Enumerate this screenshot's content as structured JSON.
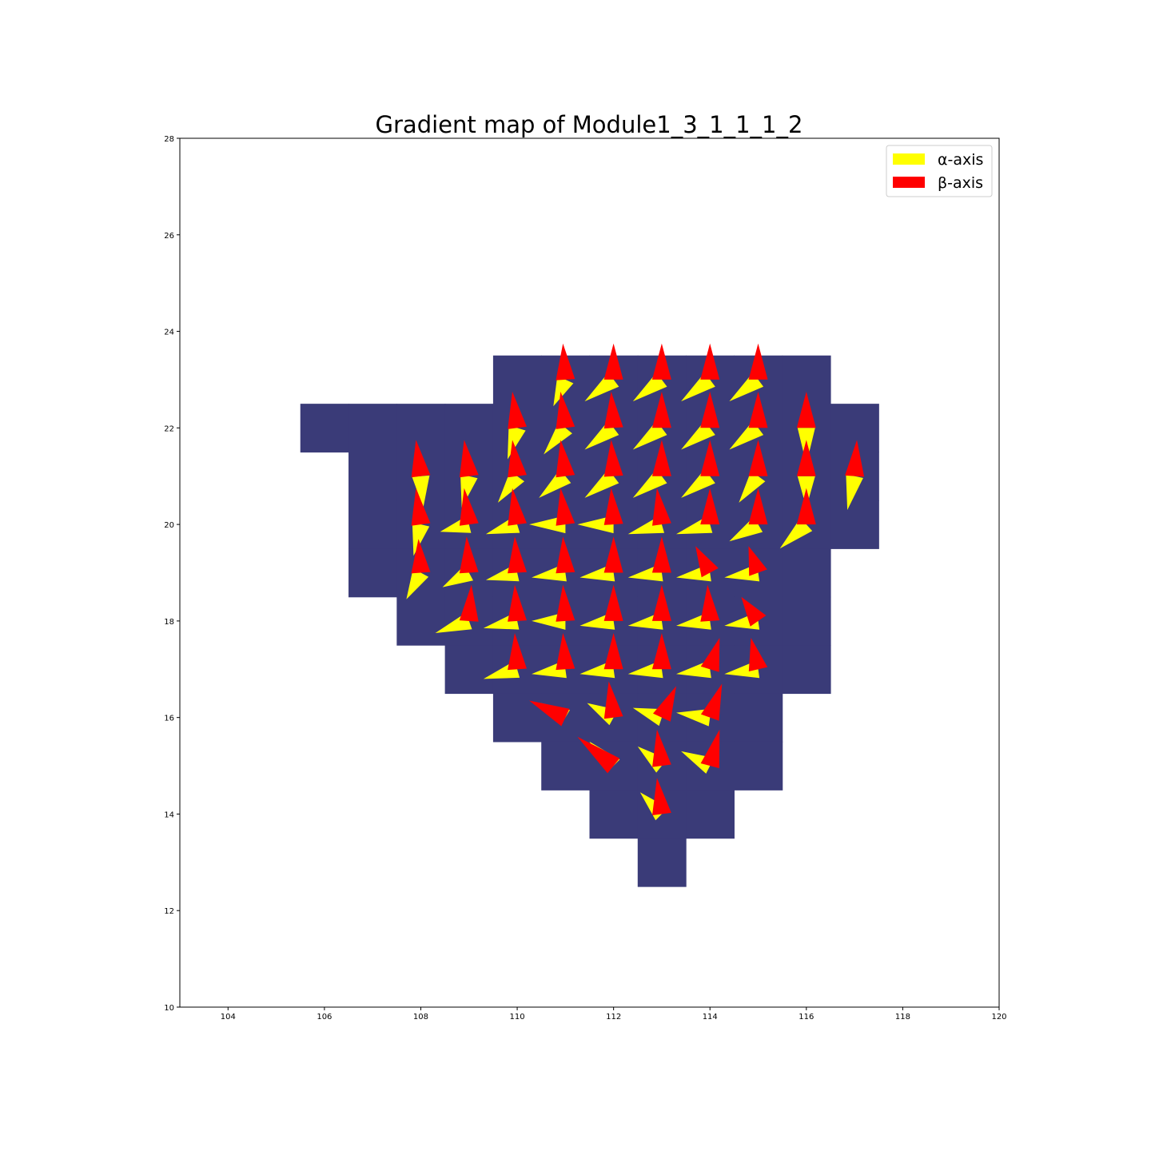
{
  "chart_data": {
    "type": "quiver",
    "title": "Gradient map of Module1_3_1_1_1_2",
    "xlabel": "",
    "ylabel": "",
    "xlim": [
      103,
      120
    ],
    "ylim": [
      10,
      28
    ],
    "x_ticks": [
      104,
      106,
      108,
      110,
      112,
      114,
      116,
      118,
      120
    ],
    "y_ticks": [
      10,
      12,
      14,
      16,
      18,
      20,
      22,
      24,
      26,
      28
    ],
    "grid": false,
    "legend": {
      "placement": "top-right",
      "entries": [
        {
          "label": "α-axis",
          "color": "#ffff00"
        },
        {
          "label": "β-axis",
          "color": "#ff0000"
        }
      ]
    },
    "mask_color": "#3a3b78",
    "mask_cells": [
      [
        110,
        23
      ],
      [
        111,
        23
      ],
      [
        112,
        23
      ],
      [
        113,
        23
      ],
      [
        114,
        23
      ],
      [
        115,
        23
      ],
      [
        116,
        23
      ],
      [
        106,
        22
      ],
      [
        107,
        22
      ],
      [
        108,
        22
      ],
      [
        109,
        22
      ],
      [
        110,
        22
      ],
      [
        111,
        22
      ],
      [
        112,
        22
      ],
      [
        113,
        22
      ],
      [
        114,
        22
      ],
      [
        115,
        22
      ],
      [
        116,
        22
      ],
      [
        117,
        22
      ],
      [
        107,
        21
      ],
      [
        108,
        21
      ],
      [
        109,
        21
      ],
      [
        110,
        21
      ],
      [
        111,
        21
      ],
      [
        112,
        21
      ],
      [
        113,
        21
      ],
      [
        114,
        21
      ],
      [
        115,
        21
      ],
      [
        116,
        21
      ],
      [
        117,
        21
      ],
      [
        107,
        20
      ],
      [
        108,
        20
      ],
      [
        109,
        20
      ],
      [
        110,
        20
      ],
      [
        111,
        20
      ],
      [
        112,
        20
      ],
      [
        113,
        20
      ],
      [
        114,
        20
      ],
      [
        115,
        20
      ],
      [
        116,
        20
      ],
      [
        117,
        20
      ],
      [
        107,
        19
      ],
      [
        108,
        19
      ],
      [
        109,
        19
      ],
      [
        110,
        19
      ],
      [
        111,
        19
      ],
      [
        112,
        19
      ],
      [
        113,
        19
      ],
      [
        114,
        19
      ],
      [
        115,
        19
      ],
      [
        116,
        19
      ],
      [
        108,
        18
      ],
      [
        109,
        18
      ],
      [
        110,
        18
      ],
      [
        111,
        18
      ],
      [
        112,
        18
      ],
      [
        113,
        18
      ],
      [
        114,
        18
      ],
      [
        115,
        18
      ],
      [
        116,
        18
      ],
      [
        109,
        17
      ],
      [
        110,
        17
      ],
      [
        111,
        17
      ],
      [
        112,
        17
      ],
      [
        113,
        17
      ],
      [
        114,
        17
      ],
      [
        115,
        17
      ],
      [
        116,
        17
      ],
      [
        110,
        16
      ],
      [
        111,
        16
      ],
      [
        112,
        16
      ],
      [
        113,
        16
      ],
      [
        114,
        16
      ],
      [
        115,
        16
      ],
      [
        111,
        15
      ],
      [
        112,
        15
      ],
      [
        113,
        15
      ],
      [
        114,
        15
      ],
      [
        115,
        15
      ],
      [
        112,
        14
      ],
      [
        113,
        14
      ],
      [
        114,
        14
      ],
      [
        113,
        13
      ]
    ],
    "beta_color": "#ff0000",
    "alpha_color": "#ffff00",
    "arrows": [
      {
        "x": 111,
        "y": 23,
        "a": [
          -0.25,
          -0.55
        ],
        "b": [
          -0.05,
          0.75
        ]
      },
      {
        "x": 112,
        "y": 23,
        "a": [
          -0.6,
          -0.45
        ],
        "b": [
          0,
          0.75
        ]
      },
      {
        "x": 113,
        "y": 23,
        "a": [
          -0.6,
          -0.45
        ],
        "b": [
          0,
          0.75
        ]
      },
      {
        "x": 114,
        "y": 23,
        "a": [
          -0.6,
          -0.45
        ],
        "b": [
          0,
          0.75
        ]
      },
      {
        "x": 115,
        "y": 23,
        "a": [
          -0.6,
          -0.45
        ],
        "b": [
          0,
          0.75
        ]
      },
      {
        "x": 110,
        "y": 22,
        "a": [
          -0.2,
          -0.65
        ],
        "b": [
          -0.1,
          0.75
        ]
      },
      {
        "x": 111,
        "y": 22,
        "a": [
          -0.45,
          -0.55
        ],
        "b": [
          -0.1,
          0.75
        ]
      },
      {
        "x": 112,
        "y": 22,
        "a": [
          -0.6,
          -0.45
        ],
        "b": [
          -0.05,
          0.75
        ]
      },
      {
        "x": 113,
        "y": 22,
        "a": [
          -0.6,
          -0.45
        ],
        "b": [
          0,
          0.75
        ]
      },
      {
        "x": 114,
        "y": 22,
        "a": [
          -0.6,
          -0.45
        ],
        "b": [
          0,
          0.75
        ]
      },
      {
        "x": 115,
        "y": 22,
        "a": [
          -0.6,
          -0.45
        ],
        "b": [
          0,
          0.75
        ]
      },
      {
        "x": 116,
        "y": 22,
        "a": [
          0,
          -0.75
        ],
        "b": [
          0,
          0.75
        ]
      },
      {
        "x": 108,
        "y": 21,
        "a": [
          0.05,
          -0.65
        ],
        "b": [
          -0.1,
          0.75
        ]
      },
      {
        "x": 109,
        "y": 21,
        "a": [
          -0.15,
          -0.65
        ],
        "b": [
          -0.1,
          0.75
        ]
      },
      {
        "x": 110,
        "y": 21,
        "a": [
          -0.4,
          -0.55
        ],
        "b": [
          -0.1,
          0.75
        ]
      },
      {
        "x": 111,
        "y": 21,
        "a": [
          -0.55,
          -0.45
        ],
        "b": [
          -0.1,
          0.75
        ]
      },
      {
        "x": 112,
        "y": 21,
        "a": [
          -0.6,
          -0.45
        ],
        "b": [
          -0.05,
          0.75
        ]
      },
      {
        "x": 113,
        "y": 21,
        "a": [
          -0.6,
          -0.45
        ],
        "b": [
          0,
          0.75
        ]
      },
      {
        "x": 114,
        "y": 21,
        "a": [
          -0.6,
          -0.45
        ],
        "b": [
          0,
          0.75
        ]
      },
      {
        "x": 115,
        "y": 21,
        "a": [
          -0.4,
          -0.55
        ],
        "b": [
          0,
          0.75
        ]
      },
      {
        "x": 116,
        "y": 21,
        "a": [
          0,
          -0.65
        ],
        "b": [
          0,
          0.75
        ]
      },
      {
        "x": 117,
        "y": 21,
        "a": [
          -0.15,
          -0.7
        ],
        "b": [
          0.05,
          0.75
        ]
      },
      {
        "x": 108,
        "y": 20,
        "a": [
          -0.15,
          -0.65
        ],
        "b": [
          -0.1,
          0.75
        ]
      },
      {
        "x": 109,
        "y": 20,
        "a": [
          -0.6,
          -0.15
        ],
        "b": [
          -0.1,
          0.75
        ]
      },
      {
        "x": 110,
        "y": 20,
        "a": [
          -0.65,
          -0.2
        ],
        "b": [
          -0.1,
          0.75
        ]
      },
      {
        "x": 111,
        "y": 20,
        "a": [
          -0.75,
          0
        ],
        "b": [
          -0.1,
          0.75
        ]
      },
      {
        "x": 112,
        "y": 20,
        "a": [
          -0.75,
          0
        ],
        "b": [
          -0.05,
          0.75
        ]
      },
      {
        "x": 113,
        "y": 20,
        "a": [
          -0.7,
          -0.2
        ],
        "b": [
          -0.1,
          0.75
        ]
      },
      {
        "x": 114,
        "y": 20,
        "a": [
          -0.7,
          -0.2
        ],
        "b": [
          0,
          0.75
        ]
      },
      {
        "x": 115,
        "y": 20,
        "a": [
          -0.6,
          -0.35
        ],
        "b": [
          0,
          0.75
        ]
      },
      {
        "x": 116,
        "y": 20,
        "a": [
          -0.55,
          -0.5
        ],
        "b": [
          0,
          0.75
        ]
      },
      {
        "x": 108,
        "y": 19,
        "a": [
          -0.3,
          -0.55
        ],
        "b": [
          -0.05,
          0.7
        ]
      },
      {
        "x": 109,
        "y": 19,
        "a": [
          -0.55,
          -0.3
        ],
        "b": [
          -0.05,
          0.75
        ]
      },
      {
        "x": 110,
        "y": 19,
        "a": [
          -0.65,
          -0.15
        ],
        "b": [
          -0.05,
          0.75
        ]
      },
      {
        "x": 111,
        "y": 19,
        "a": [
          -0.7,
          -0.1
        ],
        "b": [
          -0.05,
          0.75
        ]
      },
      {
        "x": 112,
        "y": 19,
        "a": [
          -0.7,
          -0.1
        ],
        "b": [
          0,
          0.75
        ]
      },
      {
        "x": 113,
        "y": 19,
        "a": [
          -0.7,
          -0.1
        ],
        "b": [
          0,
          0.75
        ]
      },
      {
        "x": 114,
        "y": 19,
        "a": [
          -0.7,
          -0.1
        ],
        "b": [
          -0.3,
          0.55
        ]
      },
      {
        "x": 115,
        "y": 19,
        "a": [
          -0.7,
          -0.1
        ],
        "b": [
          -0.2,
          0.55
        ]
      },
      {
        "x": 109,
        "y": 18,
        "a": [
          -0.7,
          -0.25
        ],
        "b": [
          0.05,
          0.75
        ]
      },
      {
        "x": 110,
        "y": 18,
        "a": [
          -0.7,
          -0.15
        ],
        "b": [
          -0.05,
          0.75
        ]
      },
      {
        "x": 111,
        "y": 18,
        "a": [
          -0.7,
          0
        ],
        "b": [
          -0.05,
          0.75
        ]
      },
      {
        "x": 112,
        "y": 18,
        "a": [
          -0.7,
          -0.1
        ],
        "b": [
          0,
          0.75
        ]
      },
      {
        "x": 113,
        "y": 18,
        "a": [
          -0.7,
          -0.1
        ],
        "b": [
          0,
          0.75
        ]
      },
      {
        "x": 114,
        "y": 18,
        "a": [
          -0.7,
          -0.1
        ],
        "b": [
          -0.05,
          0.75
        ]
      },
      {
        "x": 115,
        "y": 18,
        "a": [
          -0.7,
          -0.1
        ],
        "b": [
          -0.35,
          0.5
        ]
      },
      {
        "x": 110,
        "y": 17,
        "a": [
          -0.7,
          -0.2
        ],
        "b": [
          -0.05,
          0.75
        ]
      },
      {
        "x": 111,
        "y": 17,
        "a": [
          -0.7,
          -0.1
        ],
        "b": [
          -0.05,
          0.75
        ]
      },
      {
        "x": 112,
        "y": 17,
        "a": [
          -0.7,
          -0.1
        ],
        "b": [
          0,
          0.75
        ]
      },
      {
        "x": 113,
        "y": 17,
        "a": [
          -0.7,
          -0.1
        ],
        "b": [
          0,
          0.75
        ]
      },
      {
        "x": 114,
        "y": 17,
        "a": [
          -0.7,
          -0.1
        ],
        "b": [
          0.2,
          0.65
        ]
      },
      {
        "x": 115,
        "y": 17,
        "a": [
          -0.7,
          -0.1
        ],
        "b": [
          -0.15,
          0.65
        ]
      },
      {
        "x": 111,
        "y": 16,
        "a": [
          -0.5,
          0.3
        ],
        "b": [
          -0.75,
          0.35
        ]
      },
      {
        "x": 112,
        "y": 16,
        "a": [
          -0.55,
          0.3
        ],
        "b": [
          -0.1,
          0.75
        ]
      },
      {
        "x": 113,
        "y": 16,
        "a": [
          -0.6,
          0.2
        ],
        "b": [
          0.3,
          0.65
        ]
      },
      {
        "x": 114,
        "y": 16,
        "a": [
          -0.7,
          0.1
        ],
        "b": [
          0.25,
          0.7
        ]
      },
      {
        "x": 112,
        "y": 15,
        "a": [
          -0.5,
          0.5
        ],
        "b": [
          -0.75,
          0.6
        ]
      },
      {
        "x": 113,
        "y": 15,
        "a": [
          -0.5,
          0.4
        ],
        "b": [
          -0.1,
          0.75
        ]
      },
      {
        "x": 114,
        "y": 15,
        "a": [
          -0.6,
          0.3
        ],
        "b": [
          0.2,
          0.75
        ]
      },
      {
        "x": 113,
        "y": 14,
        "a": [
          -0.45,
          0.45
        ],
        "b": [
          -0.1,
          0.75
        ]
      }
    ]
  }
}
